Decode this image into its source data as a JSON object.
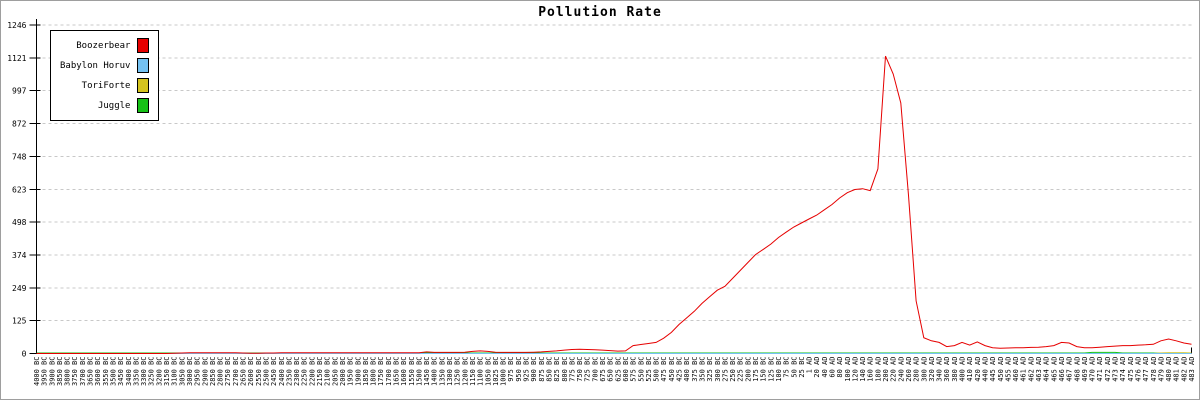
{
  "window": {
    "background": "#ffffff",
    "border_color": "#9e9e9e"
  },
  "chart_data": {
    "type": "line",
    "title": "Pollution Rate",
    "xlabel": "",
    "ylabel": "",
    "ylim": [
      0,
      1246
    ],
    "yticks": [
      0,
      125,
      249,
      374,
      498,
      623,
      748,
      872,
      997,
      1121,
      1246
    ],
    "grid": true,
    "grid_style": "dashed",
    "legend_position": "top-left",
    "categories": [
      "4000 BC",
      "3950 BC",
      "3900 BC",
      "3850 BC",
      "3800 BC",
      "3750 BC",
      "3700 BC",
      "3650 BC",
      "3600 BC",
      "3550 BC",
      "3500 BC",
      "3450 BC",
      "3400 BC",
      "3350 BC",
      "3300 BC",
      "3250 BC",
      "3200 BC",
      "3150 BC",
      "3100 BC",
      "3050 BC",
      "3000 BC",
      "2950 BC",
      "2900 BC",
      "2850 BC",
      "2800 BC",
      "2750 BC",
      "2700 BC",
      "2650 BC",
      "2600 BC",
      "2550 BC",
      "2500 BC",
      "2450 BC",
      "2400 BC",
      "2350 BC",
      "2300 BC",
      "2250 BC",
      "2200 BC",
      "2150 BC",
      "2100 BC",
      "2050 BC",
      "2000 BC",
      "1950 BC",
      "1900 BC",
      "1850 BC",
      "1800 BC",
      "1750 BC",
      "1700 BC",
      "1650 BC",
      "1600 BC",
      "1550 BC",
      "1500 BC",
      "1450 BC",
      "1400 BC",
      "1350 BC",
      "1300 BC",
      "1250 BC",
      "1200 BC",
      "1150 BC",
      "1100 BC",
      "1050 BC",
      "1025 BC",
      "1000 BC",
      "975 BC",
      "950 BC",
      "925 BC",
      "900 BC",
      "875 BC",
      "850 BC",
      "825 BC",
      "800 BC",
      "775 BC",
      "750 BC",
      "725 BC",
      "700 BC",
      "675 BC",
      "650 BC",
      "625 BC",
      "600 BC",
      "575 BC",
      "550 BC",
      "525 BC",
      "500 BC",
      "475 BC",
      "450 BC",
      "425 BC",
      "400 BC",
      "375 BC",
      "350 BC",
      "325 BC",
      "300 BC",
      "275 BC",
      "250 BC",
      "225 BC",
      "200 BC",
      "175 BC",
      "150 BC",
      "125 BC",
      "100 BC",
      "75 BC",
      "50 BC",
      "25 BC",
      "1 AD",
      "20 AD",
      "40 AD",
      "60 AD",
      "80 AD",
      "100 AD",
      "120 AD",
      "140 AD",
      "160 AD",
      "180 AD",
      "200 AD",
      "220 AD",
      "240 AD",
      "260 AD",
      "280 AD",
      "300 AD",
      "320 AD",
      "340 AD",
      "360 AD",
      "380 AD",
      "400 AD",
      "410 AD",
      "420 AD",
      "440 AD",
      "445 AD",
      "450 AD",
      "455 AD",
      "460 AD",
      "461 AD",
      "462 AD",
      "463 AD",
      "464 AD",
      "465 AD",
      "466 AD",
      "467 AD",
      "468 AD",
      "469 AD",
      "470 AD",
      "471 AD",
      "472 AD",
      "473 AD",
      "474 AD",
      "475 AD",
      "476 AD",
      "477 AD",
      "478 AD",
      "479 AD",
      "480 AD",
      "481 AD",
      "482 AD",
      "483 AD"
    ],
    "series": [
      {
        "name": "Boozerbear",
        "color": "#e60000",
        "values": [
          0,
          0,
          0,
          0,
          0,
          0,
          0,
          0,
          0,
          0,
          0,
          0,
          0,
          0,
          0,
          0,
          0,
          0,
          1,
          2,
          3,
          3,
          3,
          3,
          3,
          3,
          3,
          2,
          1,
          1,
          2,
          2,
          3,
          3,
          3,
          3,
          3,
          3,
          3,
          3,
          3,
          3,
          3,
          3,
          3,
          3,
          3,
          3,
          3,
          3,
          3,
          6,
          4,
          4,
          4,
          4,
          5,
          8,
          10,
          8,
          5,
          4,
          4,
          4,
          4,
          5,
          6,
          8,
          10,
          13,
          15,
          16,
          15,
          14,
          13,
          11,
          9,
          10,
          30,
          34,
          38,
          42,
          58,
          80,
          110,
          135,
          160,
          190,
          215,
          240,
          255,
          285,
          315,
          345,
          375,
          395,
          415,
          440,
          460,
          480,
          495,
          510,
          525,
          545,
          565,
          590,
          610,
          622,
          625,
          618,
          700,
          1128,
          1060,
          950,
          600,
          200,
          60,
          48,
          42,
          26,
          30,
          42,
          32,
          44,
          30,
          22,
          20,
          21,
          22,
          22,
          23,
          24,
          26,
          30,
          42,
          40,
          26,
          22,
          22,
          24,
          26,
          28,
          30,
          30,
          32,
          33,
          35,
          48,
          55,
          48,
          40,
          35
        ]
      },
      {
        "name": "Babylon Horuv",
        "color": "#74c2f2",
        "values": [
          0,
          0,
          0,
          0,
          0,
          0,
          0,
          0,
          0,
          0,
          0,
          0,
          0,
          0,
          0,
          0,
          0,
          0,
          0,
          0,
          0,
          0,
          0,
          0,
          0,
          0,
          0,
          0,
          0,
          0,
          0,
          0,
          0,
          0,
          0,
          0,
          0,
          0,
          0,
          0,
          0,
          0,
          0,
          0,
          0,
          0,
          0,
          0,
          0,
          0,
          0,
          0,
          0,
          0,
          0,
          0,
          0,
          0,
          0,
          0,
          0,
          0,
          0,
          0,
          0,
          0,
          0,
          0,
          0,
          0,
          0,
          0,
          0,
          0,
          0,
          0,
          0,
          0,
          0,
          0,
          0,
          0,
          0,
          0,
          0,
          0,
          0,
          0,
          0,
          0,
          0,
          0,
          0,
          0,
          0,
          0,
          0,
          0,
          0,
          0,
          0,
          0,
          0,
          0,
          0,
          0,
          0,
          0,
          0,
          0,
          0,
          0,
          0,
          0,
          0,
          0,
          0,
          0,
          0,
          0,
          0,
          0,
          0,
          0,
          0,
          0,
          0,
          0,
          0,
          0,
          0,
          0,
          0,
          0,
          0,
          0,
          0,
          0,
          0,
          0,
          0,
          0,
          0,
          0,
          0,
          0,
          0,
          0,
          0,
          0,
          0,
          0
        ]
      },
      {
        "name": "ToriForte",
        "color": "#d4c41e",
        "values": [
          0,
          0,
          0,
          0,
          0,
          0,
          0,
          0,
          0,
          0,
          0,
          0,
          0,
          0,
          0,
          0,
          0,
          0,
          0,
          0,
          0,
          0,
          0,
          0,
          0,
          0,
          0,
          0,
          0,
          0,
          0,
          0,
          0,
          0,
          0,
          0,
          0,
          0,
          0,
          0,
          0,
          0,
          0,
          0,
          0,
          0,
          0,
          0,
          0,
          0,
          0,
          0,
          0,
          0,
          0,
          0,
          0,
          0,
          0,
          0,
          0,
          0,
          0,
          0,
          0,
          0,
          0,
          0,
          0,
          0,
          0,
          0,
          0,
          0,
          0,
          0,
          0,
          0,
          0,
          0,
          0,
          0,
          0,
          0,
          0,
          0,
          0,
          0,
          0,
          0,
          0,
          0,
          0,
          0,
          0,
          0,
          0,
          0,
          0,
          0,
          0,
          0,
          0,
          0,
          0,
          0,
          0,
          0,
          0,
          0,
          0,
          0,
          0,
          0,
          0,
          0,
          0,
          0,
          0,
          0,
          0,
          0,
          0,
          0,
          0,
          0,
          0,
          0,
          0,
          0,
          0,
          0,
          0,
          0,
          0,
          0,
          0,
          0,
          0,
          0,
          0,
          0,
          0,
          0,
          0,
          0,
          0,
          2,
          3,
          3,
          3,
          2
        ]
      },
      {
        "name": "Juggle",
        "color": "#16c216",
        "values": [
          2,
          2,
          2,
          2,
          2,
          2,
          2,
          2,
          2,
          2,
          2,
          2,
          2,
          2,
          2,
          2,
          2,
          2,
          2,
          2,
          2,
          2,
          2,
          2,
          2,
          2,
          2,
          2,
          2,
          2,
          2,
          2,
          2,
          2,
          2,
          2,
          2,
          2,
          2,
          2,
          2,
          2,
          2,
          2,
          2,
          2,
          2,
          2,
          2,
          2,
          2,
          2,
          2,
          2,
          2,
          2,
          2,
          2,
          2,
          2,
          2,
          2,
          2,
          2,
          2,
          2,
          2,
          2,
          2,
          2,
          2,
          2,
          2,
          2,
          2,
          2,
          2,
          2,
          2,
          2,
          2,
          2,
          2,
          2,
          2,
          2,
          2,
          2,
          2,
          2,
          2,
          2,
          2,
          2,
          2,
          2,
          2,
          2,
          2,
          2,
          2,
          2,
          2,
          2,
          2,
          2,
          2,
          2,
          2,
          2,
          2,
          2,
          2,
          2,
          2,
          2,
          2,
          2,
          2,
          2,
          2,
          2,
          2,
          2,
          2,
          2,
          2,
          2,
          2,
          2,
          2,
          2,
          2,
          2,
          2,
          2,
          2,
          2,
          4,
          4,
          4,
          4,
          2,
          2,
          2,
          2,
          2,
          1,
          0,
          0,
          0,
          0
        ]
      }
    ]
  }
}
